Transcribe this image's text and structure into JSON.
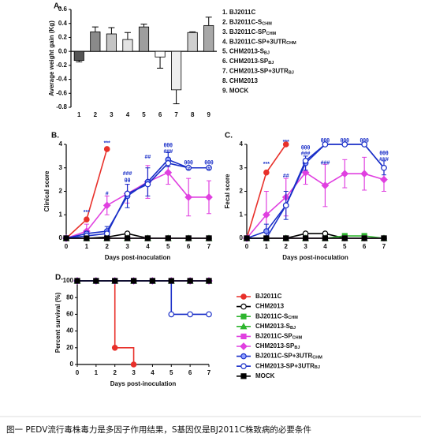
{
  "chart_data": [
    {
      "type": "bar",
      "panel": "A.",
      "ylabel": "Average weight gain (Kg)",
      "categories": [
        "1",
        "2",
        "3",
        "4",
        "5",
        "6",
        "7",
        "8",
        "9"
      ],
      "values": [
        -0.13,
        0.28,
        0.25,
        0.17,
        0.35,
        -0.08,
        -0.55,
        0.27,
        0.37
      ],
      "errors": [
        0.02,
        0.07,
        0.09,
        0.1,
        0.04,
        0.16,
        0.2,
        0.01,
        0.12
      ],
      "colors": [
        "#555555",
        "#8a8a8a",
        "#c4c4c4",
        "#e2e2e2",
        "#9e9e9e",
        "#ffffff",
        "#eeeeee",
        "#cfcfcf",
        "#a8a8a8"
      ],
      "ylim": [
        -0.8,
        0.6
      ],
      "yticks": [
        -0.8,
        -0.6,
        -0.4,
        -0.2,
        {
          "value": 0,
          "label": "0.0"
        },
        0.2,
        0.4,
        0.6
      ],
      "legend": [
        {
          "text": "1. BJ2011C"
        },
        {
          "text": "2. BJ2011C-S",
          "sub": "CHM"
        },
        {
          "text": "3. BJ2011C-SP",
          "sub": "CHM"
        },
        {
          "text": "4. BJ2011C-SP+3UTR",
          "sub": "CHM"
        },
        {
          "text": "5. CHM2013-S",
          "sub": "BJ"
        },
        {
          "text": "6. CHM2013-SP",
          "sub": "BJ"
        },
        {
          "text": "7. CHM2013-SP+3UTR",
          "sub": "BJ"
        },
        {
          "text": "8. CHM2013"
        },
        {
          "text": "9. MOCK"
        }
      ]
    },
    {
      "type": "line",
      "panel": "B.",
      "ylabel": "Clinical score",
      "xlabel": "Days post-inoculation",
      "x": [
        0,
        1,
        2,
        3,
        4,
        5,
        6,
        7
      ],
      "xlim": [
        0,
        7
      ],
      "xticks": [
        0,
        1,
        2,
        3,
        4,
        5,
        6,
        7
      ],
      "ylim": [
        0,
        4
      ],
      "yticks": [
        0,
        1,
        2,
        3,
        4
      ],
      "series": [
        {
          "color": "#e8302a",
          "marker": "circle",
          "values": [
            0,
            0.8,
            3.8,
            null,
            null,
            null,
            null,
            null
          ]
        },
        {
          "color": "#000000",
          "marker": "open-circle",
          "values": [
            0,
            0,
            0.05,
            0.2,
            0,
            0,
            0,
            0
          ]
        },
        {
          "color": "#2db52d",
          "marker": "square",
          "values": [
            0,
            0,
            0,
            0,
            0,
            0,
            0,
            0
          ]
        },
        {
          "color": "#2db52d",
          "marker": "triangle",
          "values": [
            0,
            0,
            0,
            0,
            0,
            0,
            0,
            0
          ]
        },
        {
          "color": "#e040e0",
          "marker": "square",
          "values": [
            0,
            0,
            0,
            0,
            0,
            0,
            0,
            0
          ]
        },
        {
          "color": "#e040e0",
          "marker": "diamond",
          "values": [
            0,
            0.3,
            1.4,
            1.9,
            2.4,
            2.8,
            1.75,
            1.75
          ],
          "errors": [
            0,
            0.3,
            0.4,
            0.4,
            0.7,
            0.5,
            0.8,
            0.7
          ]
        },
        {
          "color": "#1a2fc8",
          "marker": "half-circle",
          "values": [
            0,
            0.2,
            0.3,
            1.8,
            2.4,
            3.35,
            3.0,
            3.0
          ],
          "errors": [
            0,
            0.1,
            0.2,
            0.5,
            0.6,
            0.3,
            0,
            0
          ]
        },
        {
          "color": "#1a2fc8",
          "marker": "open-circle",
          "values": [
            0,
            0.1,
            0.2,
            1.9,
            2.3,
            3.2,
            3.0,
            3.0
          ]
        },
        {
          "color": "#000000",
          "marker": "square",
          "values": [
            0,
            0,
            0,
            0,
            0,
            0,
            0,
            0
          ]
        }
      ],
      "annotations": [
        {
          "text": "***",
          "x": 1,
          "y": 1.1
        },
        {
          "text": "***",
          "x": 2,
          "y": 4.05
        },
        {
          "text": "#",
          "x": 2,
          "y": 1.9
        },
        {
          "text": "###",
          "x": 3,
          "y": 2.75
        },
        {
          "text": "θθ",
          "x": 3,
          "y": 2.45
        },
        {
          "text": "##",
          "x": 4,
          "y": 3.45
        },
        {
          "text": "θθθ",
          "x": 5,
          "y": 3.95
        },
        {
          "text": "###",
          "x": 5,
          "y": 3.7
        },
        {
          "text": "θθθ",
          "x": 6,
          "y": 3.2
        },
        {
          "text": "#",
          "x": 6,
          "y": 2.95
        },
        {
          "text": "θθθ",
          "x": 7,
          "y": 3.2
        },
        {
          "text": "#",
          "x": 7,
          "y": 2.95
        }
      ]
    },
    {
      "type": "line",
      "panel": "C.",
      "ylabel": "Fecal score",
      "xlabel": "Days post-inoculation",
      "x": [
        0,
        1,
        2,
        3,
        4,
        5,
        6,
        7
      ],
      "xlim": [
        0,
        7
      ],
      "xticks": [
        0,
        1,
        2,
        3,
        4,
        5,
        6,
        7
      ],
      "ylim": [
        0,
        4
      ],
      "yticks": [
        0,
        1,
        2,
        3,
        4
      ],
      "series": [
        {
          "color": "#e8302a",
          "marker": "circle",
          "values": [
            0,
            2.8,
            4.0,
            null,
            null,
            null,
            null,
            null
          ]
        },
        {
          "color": "#000000",
          "marker": "open-circle",
          "values": [
            0,
            0,
            0,
            0.2,
            0.2,
            0,
            0,
            0
          ]
        },
        {
          "color": "#2db52d",
          "marker": "square",
          "values": [
            0,
            0,
            0,
            0,
            0,
            0.1,
            0.1,
            0
          ]
        },
        {
          "color": "#2db52d",
          "marker": "triangle",
          "values": [
            0,
            0,
            0,
            0,
            0,
            0,
            0,
            0
          ]
        },
        {
          "color": "#e040e0",
          "marker": "square",
          "values": [
            0,
            0,
            0,
            0,
            0,
            0,
            0,
            0
          ]
        },
        {
          "color": "#e040e0",
          "marker": "diamond",
          "values": [
            0,
            1.0,
            1.75,
            2.8,
            2.25,
            2.75,
            2.75,
            2.5
          ],
          "errors": [
            0,
            1.0,
            0.8,
            0.5,
            0.9,
            0.6,
            0.7,
            0.5
          ]
        },
        {
          "color": "#1a2fc8",
          "marker": "half-circle",
          "values": [
            0,
            0.3,
            1.4,
            3.2,
            4.0,
            4.0,
            4.0,
            3.0
          ],
          "errors": [
            0,
            0.3,
            0.6,
            0.3,
            0,
            0,
            0,
            0.3
          ]
        },
        {
          "color": "#1a2fc8",
          "marker": "open-circle",
          "values": [
            0,
            0,
            1.4,
            3.3,
            4.0,
            4.0,
            4.0,
            3.0
          ]
        },
        {
          "color": "#000000",
          "marker": "square",
          "values": [
            0,
            0,
            0,
            0,
            0,
            0,
            0,
            0
          ]
        }
      ],
      "annotations": [
        {
          "text": "***",
          "x": 1,
          "y": 3.15
        },
        {
          "text": "***",
          "x": 2,
          "y": 4.1
        },
        {
          "text": "##",
          "x": 2,
          "y": 2.65
        },
        {
          "text": "θθθ",
          "x": 3,
          "y": 3.85
        },
        {
          "text": "###",
          "x": 3,
          "y": 3.6
        },
        {
          "text": "θθθ",
          "x": 4,
          "y": 4.15
        },
        {
          "text": "###",
          "x": 4,
          "y": 3.2
        },
        {
          "text": "θθθ",
          "x": 5,
          "y": 4.15
        },
        {
          "text": "θθθ",
          "x": 6,
          "y": 4.15
        },
        {
          "text": "θθθ",
          "x": 7,
          "y": 3.6
        },
        {
          "text": "###",
          "x": 7,
          "y": 3.35
        }
      ]
    },
    {
      "type": "step",
      "panel": "D.",
      "ylabel": "Percent survival (%)",
      "xlabel": "Days post-inoculation",
      "x": [
        0,
        1,
        2,
        3,
        4,
        5,
        6,
        7
      ],
      "xlim": [
        0,
        7
      ],
      "xticks": [
        0,
        1,
        2,
        3,
        4,
        5,
        6,
        7
      ],
      "ylim": [
        0,
        100
      ],
      "yticks": [
        0,
        20,
        40,
        60,
        80,
        100
      ],
      "series": [
        {
          "name": "BJ2011C",
          "color": "#e8302a",
          "marker": "circle",
          "values": [
            100,
            100,
            20,
            0,
            null,
            null,
            null,
            null
          ]
        },
        {
          "name": "CHM2013",
          "color": "#000000",
          "marker": "open-circle",
          "values": [
            100,
            100,
            100,
            100,
            100,
            100,
            100,
            100
          ]
        },
        {
          "name": "BJ2011C-S",
          "sub": "CHM",
          "color": "#2db52d",
          "marker": "square",
          "values": [
            100,
            100,
            100,
            100,
            100,
            100,
            100,
            100
          ]
        },
        {
          "name": "CHM2013-S",
          "sub": "BJ",
          "color": "#2db52d",
          "marker": "triangle",
          "values": [
            100,
            100,
            100,
            100,
            100,
            100,
            100,
            100
          ]
        },
        {
          "name": "BJ2011C-SP",
          "sub": "CHM",
          "color": "#e040e0",
          "marker": "square",
          "values": [
            100,
            100,
            100,
            100,
            100,
            100,
            100,
            100
          ]
        },
        {
          "name": "CHM2013-SP",
          "sub": "BJ",
          "color": "#e040e0",
          "marker": "diamond",
          "values": [
            100,
            100,
            100,
            100,
            100,
            100,
            100,
            100
          ]
        },
        {
          "name": "BJ2011C-SP+3UTR",
          "sub": "CHM",
          "color": "#1a2fc8",
          "marker": "half-circle",
          "values": [
            100,
            100,
            100,
            100,
            100,
            100,
            100,
            100
          ]
        },
        {
          "name": "CHM2013-SP+3UTR",
          "sub": "BJ",
          "color": "#1a2fc8",
          "marker": "open-circle",
          "values": [
            100,
            100,
            100,
            100,
            100,
            60,
            60,
            60
          ]
        },
        {
          "name": "MOCK",
          "color": "#000000",
          "marker": "square",
          "values": [
            100,
            100,
            100,
            100,
            100,
            100,
            100,
            100
          ]
        }
      ]
    }
  ],
  "caption": "图一 PEDV流行毒株毒力是多因子作用结果，S基因仅是BJ2011C株致病的必要条件"
}
